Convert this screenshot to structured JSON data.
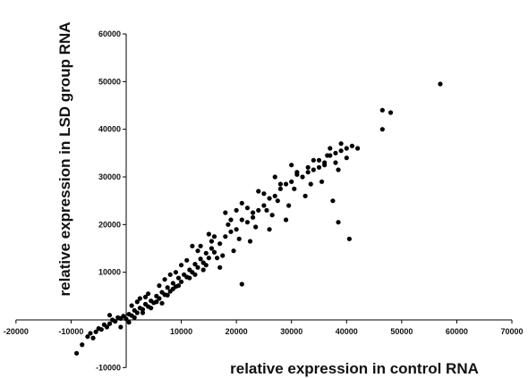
{
  "chart_data": {
    "type": "scatter",
    "title": "",
    "xlabel": "relative expression in control RNA",
    "ylabel": "relative expression in LSD group RNA",
    "xlim": [
      -20000,
      70000
    ],
    "ylim": [
      -10000,
      60000
    ],
    "x_ticks": [
      -20000,
      -10000,
      0,
      10000,
      20000,
      30000,
      40000,
      50000,
      60000,
      70000
    ],
    "y_ticks": [
      -10000,
      10000,
      20000,
      30000,
      40000,
      50000,
      60000
    ],
    "x_tick_labels": [
      "-20000",
      "-10000",
      "",
      "10000",
      "20000",
      "30000",
      "40000",
      "50000",
      "60000",
      "70000"
    ],
    "y_tick_labels": [
      "-10000",
      "10000",
      "20000",
      "30000",
      "40000",
      "50000",
      "60000"
    ],
    "grid": false,
    "legend": "none",
    "marker_color": "#000000",
    "points": [
      [
        -9000,
        -7000
      ],
      [
        -8000,
        -5200
      ],
      [
        -7000,
        -3500
      ],
      [
        -6500,
        -2800
      ],
      [
        -6000,
        -3800
      ],
      [
        -5500,
        -2500
      ],
      [
        -5000,
        -1800
      ],
      [
        -4500,
        -2000
      ],
      [
        -4000,
        -1000
      ],
      [
        -3500,
        -1500
      ],
      [
        -3000,
        -800
      ],
      [
        -2500,
        0
      ],
      [
        -2000,
        -300
      ],
      [
        -1500,
        500
      ],
      [
        -1000,
        300
      ],
      [
        -500,
        800
      ],
      [
        0,
        200
      ],
      [
        500,
        1200
      ],
      [
        1000,
        900
      ],
      [
        1500,
        2000
      ],
      [
        2000,
        1500
      ],
      [
        2500,
        2500
      ],
      [
        3000,
        2200
      ],
      [
        3500,
        3300
      ],
      [
        4000,
        2800
      ],
      [
        4500,
        4000
      ],
      [
        5000,
        3600
      ],
      [
        5500,
        5000
      ],
      [
        6000,
        4500
      ],
      [
        6500,
        5800
      ],
      [
        7000,
        5300
      ],
      [
        7500,
        6800
      ],
      [
        8000,
        6000
      ],
      [
        8500,
        7700
      ],
      [
        9000,
        7000
      ],
      [
        9500,
        8800
      ],
      [
        10000,
        8000
      ],
      [
        10500,
        9500
      ],
      [
        11000,
        9000
      ],
      [
        11500,
        10500
      ],
      [
        12000,
        10000
      ],
      [
        12500,
        11700
      ],
      [
        13000,
        11000
      ],
      [
        13500,
        12800
      ],
      [
        14000,
        12000
      ],
      [
        14500,
        14000
      ],
      [
        15000,
        13000
      ],
      [
        15500,
        15000
      ],
      [
        16000,
        14200
      ],
      [
        17000,
        16000
      ],
      [
        18000,
        17500
      ],
      [
        19000,
        18500
      ],
      [
        20000,
        19000
      ],
      [
        21000,
        21000
      ],
      [
        22000,
        20500
      ],
      [
        23000,
        22500
      ],
      [
        24000,
        23000
      ],
      [
        25000,
        24000
      ],
      [
        26000,
        25500
      ],
      [
        27000,
        26000
      ],
      [
        28000,
        27500
      ],
      [
        29000,
        28500
      ],
      [
        30000,
        29000
      ],
      [
        31000,
        31000
      ],
      [
        32000,
        30000
      ],
      [
        33000,
        32000
      ],
      [
        34000,
        31500
      ],
      [
        35000,
        33500
      ],
      [
        36000,
        32500
      ],
      [
        37000,
        34500
      ],
      [
        38000,
        35000
      ],
      [
        39000,
        37000
      ],
      [
        40000,
        36000
      ],
      [
        41000,
        36500
      ],
      [
        42000,
        36000
      ],
      [
        4000,
        5500
      ],
      [
        5500,
        3800
      ],
      [
        7000,
        8500
      ],
      [
        8500,
        6500
      ],
      [
        10000,
        11500
      ],
      [
        11500,
        8800
      ],
      [
        13000,
        14500
      ],
      [
        14500,
        11500
      ],
      [
        16000,
        17500
      ],
      [
        17500,
        13500
      ],
      [
        19000,
        21000
      ],
      [
        20500,
        17000
      ],
      [
        22000,
        23500
      ],
      [
        23500,
        19500
      ],
      [
        25000,
        26500
      ],
      [
        26500,
        22000
      ],
      [
        28000,
        28500
      ],
      [
        29500,
        24000
      ],
      [
        31000,
        30500
      ],
      [
        32500,
        26000
      ],
      [
        34000,
        33500
      ],
      [
        35500,
        29000
      ],
      [
        37000,
        36000
      ],
      [
        38500,
        31500
      ],
      [
        40000,
        34000
      ],
      [
        12000,
        15500
      ],
      [
        15000,
        18000
      ],
      [
        18000,
        22500
      ],
      [
        21000,
        24500
      ],
      [
        24000,
        27000
      ],
      [
        27000,
        30000
      ],
      [
        30000,
        32500
      ],
      [
        33000,
        31000
      ],
      [
        36000,
        33000
      ],
      [
        39000,
        35500
      ],
      [
        17000,
        11000
      ],
      [
        19500,
        14500
      ],
      [
        22500,
        16500
      ],
      [
        26000,
        19000
      ],
      [
        29000,
        21000
      ],
      [
        1000,
        3000
      ],
      [
        2000,
        3800
      ],
      [
        3000,
        1500
      ],
      [
        3500,
        4800
      ],
      [
        4500,
        2500
      ],
      [
        6000,
        7200
      ],
      [
        7500,
        5200
      ],
      [
        9000,
        10000
      ],
      [
        9500,
        7200
      ],
      [
        11000,
        12500
      ],
      [
        12500,
        9500
      ],
      [
        13500,
        15500
      ],
      [
        14000,
        10500
      ],
      [
        15500,
        16500
      ],
      [
        16500,
        13000
      ],
      [
        37500,
        25000
      ],
      [
        40500,
        17000
      ],
      [
        38500,
        20500
      ],
      [
        21000,
        7500
      ],
      [
        46500,
        44000
      ],
      [
        46500,
        40000
      ],
      [
        48000,
        43500
      ],
      [
        57000,
        49500
      ],
      [
        -1000,
        -1500
      ],
      [
        500,
        -500
      ],
      [
        -3000,
        1000
      ],
      [
        1500,
        500
      ],
      [
        2500,
        4500
      ],
      [
        6500,
        3500
      ],
      [
        8000,
        9500
      ],
      [
        18500,
        20000
      ],
      [
        20000,
        23000
      ],
      [
        23000,
        21500
      ],
      [
        25500,
        23000
      ],
      [
        27500,
        25000
      ],
      [
        30500,
        27500
      ],
      [
        33500,
        28500
      ],
      [
        35000,
        32000
      ],
      [
        36500,
        34500
      ],
      [
        38000,
        33000
      ]
    ]
  }
}
